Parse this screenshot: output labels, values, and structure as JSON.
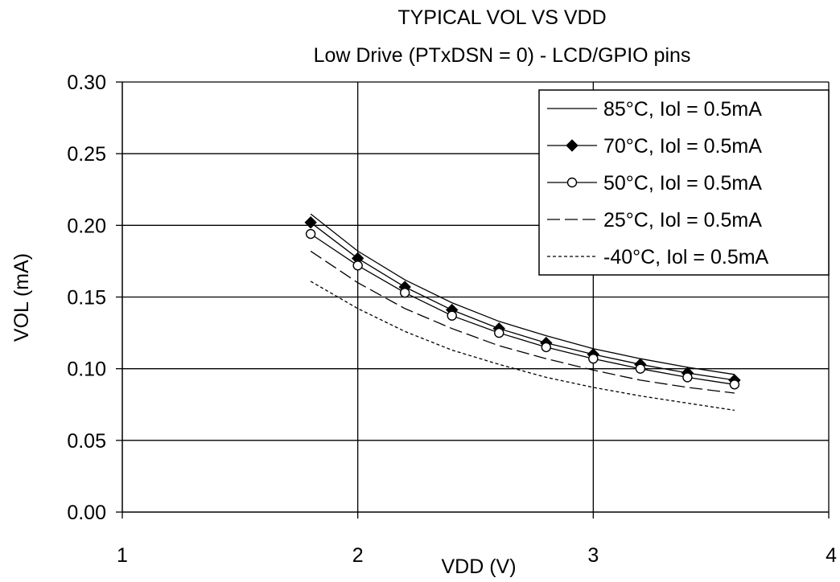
{
  "chart_data": {
    "type": "line",
    "title": "TYPICAL VOL VS VDD",
    "subtitle": "Low Drive (PTxDSN = 0) - LCD/GPIO pins",
    "xlabel": "VDD (V)",
    "ylabel": "VOL (mA)",
    "xlim": [
      1,
      4
    ],
    "ylim": [
      0,
      0.3
    ],
    "x_ticks": [
      "1",
      "2",
      "3",
      "4"
    ],
    "y_ticks": [
      "0.00",
      "0.05",
      "0.10",
      "0.15",
      "0.20",
      "0.25",
      "0.30"
    ],
    "grid": true,
    "legend_position": "top-right",
    "x": [
      1.8,
      2.0,
      2.2,
      2.4,
      2.6,
      2.8,
      3.0,
      3.2,
      3.4,
      3.6
    ],
    "series": [
      {
        "name": "85°C, Iol = 0.5mA",
        "style": "solid",
        "marker": "none",
        "values": [
          0.208,
          0.182,
          0.162,
          0.146,
          0.133,
          0.123,
          0.114,
          0.107,
          0.101,
          0.096
        ]
      },
      {
        "name": "70°C, Iol = 0.5mA",
        "style": "solid",
        "marker": "filled-diamond",
        "values": [
          0.202,
          0.177,
          0.157,
          0.141,
          0.128,
          0.118,
          0.11,
          0.103,
          0.097,
          0.092
        ]
      },
      {
        "name": "50°C, Iol = 0.5mA",
        "style": "solid",
        "marker": "open-circle",
        "values": [
          0.194,
          0.172,
          0.153,
          0.137,
          0.125,
          0.115,
          0.107,
          0.1,
          0.094,
          0.089
        ]
      },
      {
        "name": "25°C, Iol = 0.5mA",
        "style": "long-dash",
        "marker": "none",
        "values": [
          0.182,
          0.16,
          0.142,
          0.128,
          0.116,
          0.107,
          0.099,
          0.092,
          0.087,
          0.083
        ]
      },
      {
        "name": "-40°C, Iol = 0.5mA",
        "style": "short-dash",
        "marker": "none",
        "values": [
          0.161,
          0.142,
          0.126,
          0.113,
          0.103,
          0.094,
          0.087,
          0.081,
          0.076,
          0.071
        ]
      }
    ],
    "colors": {
      "background": "#ffffff",
      "lines": "#000000",
      "grid": "#000000"
    }
  }
}
